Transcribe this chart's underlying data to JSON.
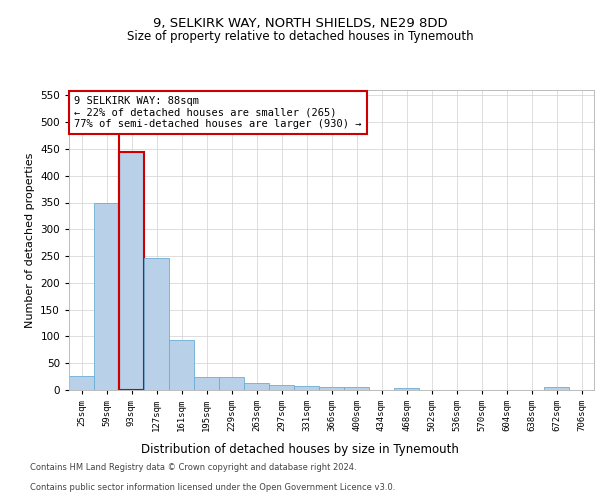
{
  "title1": "9, SELKIRK WAY, NORTH SHIELDS, NE29 8DD",
  "title2": "Size of property relative to detached houses in Tynemouth",
  "xlabel": "Distribution of detached houses by size in Tynemouth",
  "ylabel": "Number of detached properties",
  "categories": [
    "25sqm",
    "59sqm",
    "93sqm",
    "127sqm",
    "161sqm",
    "195sqm",
    "229sqm",
    "263sqm",
    "297sqm",
    "331sqm",
    "366sqm",
    "400sqm",
    "434sqm",
    "468sqm",
    "502sqm",
    "536sqm",
    "570sqm",
    "604sqm",
    "638sqm",
    "672sqm",
    "706sqm"
  ],
  "values": [
    27,
    350,
    445,
    247,
    93,
    24,
    24,
    13,
    10,
    8,
    6,
    5,
    0,
    4,
    0,
    0,
    0,
    0,
    0,
    5,
    0
  ],
  "bar_color": "#b8d0e8",
  "bar_edge_color": "#6aaed6",
  "annotation_text": "9 SELKIRK WAY: 88sqm\n← 22% of detached houses are smaller (265)\n77% of semi-detached houses are larger (930) →",
  "annotation_box_color": "#ffffff",
  "annotation_box_edge": "#cc0000",
  "property_line_color": "#cc0000",
  "property_line_x": 1.5,
  "ylim": [
    0,
    560
  ],
  "yticks": [
    0,
    50,
    100,
    150,
    200,
    250,
    300,
    350,
    400,
    450,
    500,
    550
  ],
  "footer1": "Contains HM Land Registry data © Crown copyright and database right 2024.",
  "footer2": "Contains public sector information licensed under the Open Government Licence v3.0.",
  "background_color": "#ffffff",
  "grid_color": "#d0d0d0"
}
